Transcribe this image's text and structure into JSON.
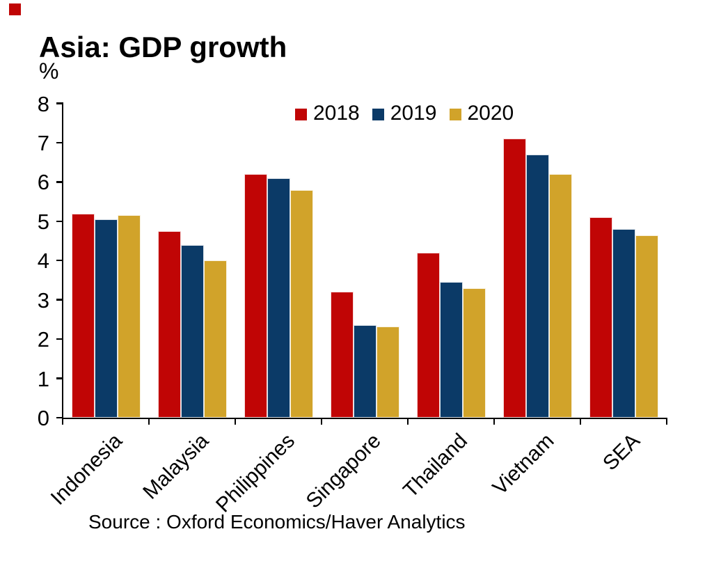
{
  "chart_data": {
    "type": "bar",
    "title": "Asia: GDP growth",
    "ylabel": "%",
    "xlabel": "",
    "categories": [
      "Indonesia",
      "Malaysia",
      "Philippines",
      "Singapore",
      "Thailand",
      "Vietnam",
      "SEA"
    ],
    "series": [
      {
        "name": "2018",
        "color": "#c00505",
        "values": [
          5.2,
          4.75,
          6.2,
          3.2,
          4.2,
          7.1,
          5.1
        ]
      },
      {
        "name": "2019",
        "color": "#0b3a67",
        "values": [
          5.05,
          4.4,
          6.1,
          2.35,
          3.45,
          6.7,
          4.8
        ]
      },
      {
        "name": "2020",
        "color": "#d1a32a",
        "values": [
          5.15,
          4.0,
          5.8,
          2.33,
          3.3,
          6.2,
          4.65
        ]
      }
    ],
    "ylim": [
      0,
      8
    ],
    "ytick_step": 1,
    "grid": false,
    "legend_position": "top-center",
    "x_labels_rotation_deg": -45,
    "source": "Source : Oxford Economics/Haver Analytics"
  },
  "decorations": {
    "corner_square_color": "#c00505",
    "axis_color": "#000000"
  }
}
